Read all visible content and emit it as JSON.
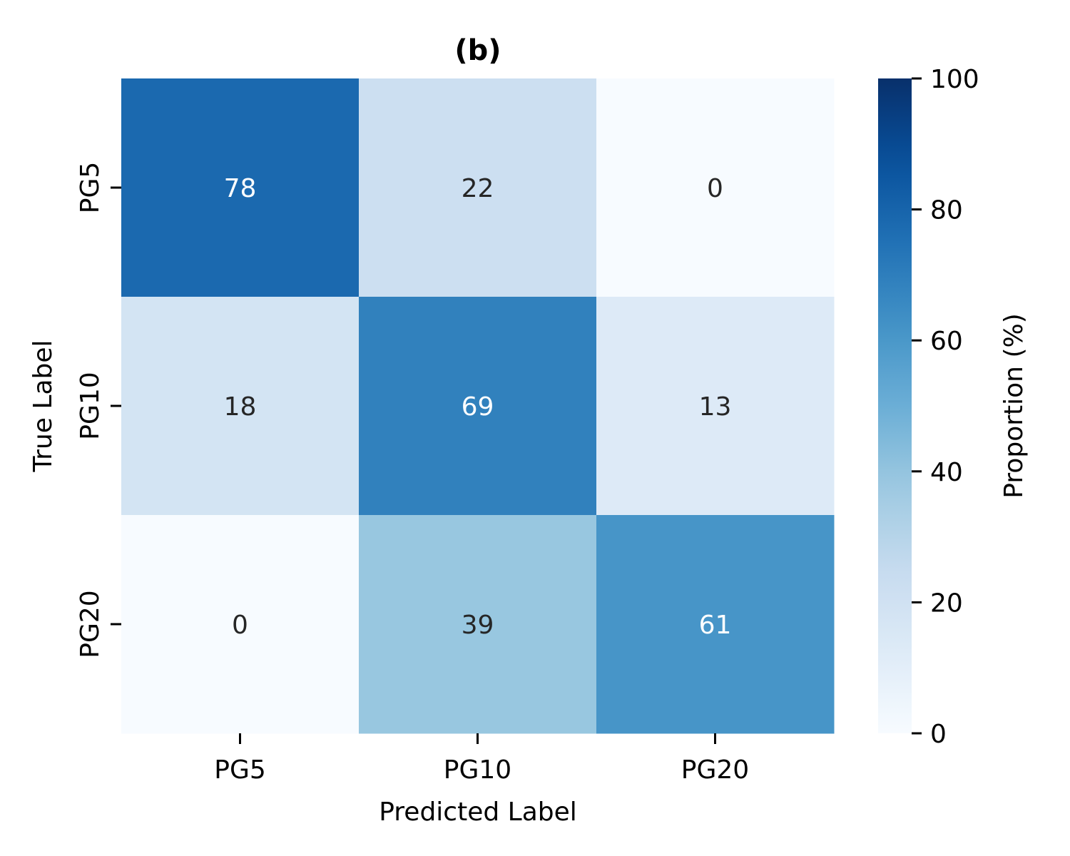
{
  "chart_data": {
    "type": "heatmap",
    "title": "(b)",
    "xlabel": "Predicted Label",
    "ylabel": "True Label",
    "x_categories": [
      "PG5",
      "PG10",
      "PG20"
    ],
    "y_categories": [
      "PG5",
      "PG10",
      "PG20"
    ],
    "values": [
      [
        78,
        22,
        0
      ],
      [
        18,
        69,
        13
      ],
      [
        0,
        39,
        61
      ]
    ],
    "colormap": "Blues",
    "colorbar": {
      "label": "Proportion (%)",
      "range": [
        0,
        100
      ],
      "ticks": [
        0,
        20,
        40,
        60,
        80,
        100
      ]
    },
    "colors": {
      "text_light": "#ffffff",
      "text_dark": "#262626"
    }
  }
}
